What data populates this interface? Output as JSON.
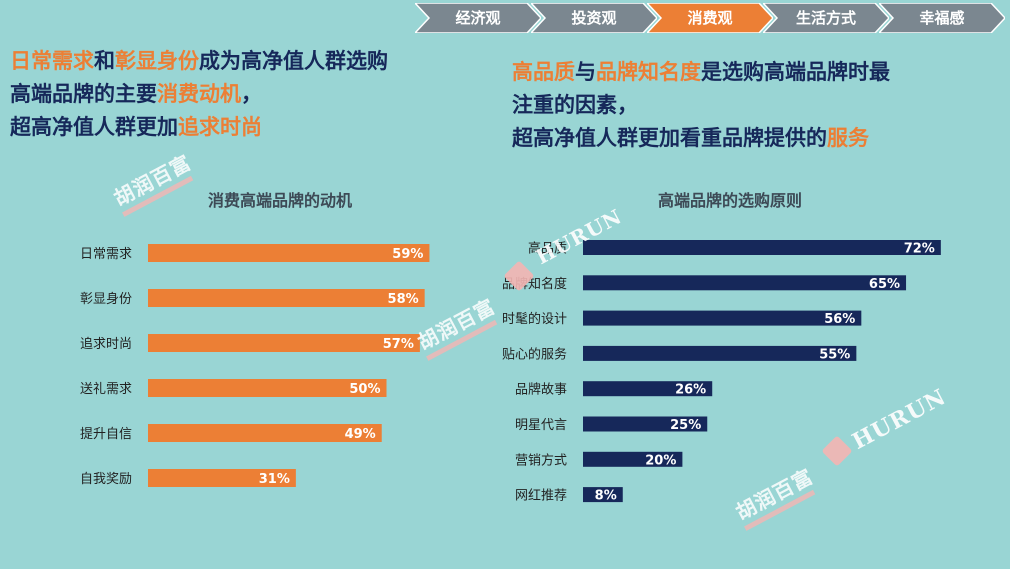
{
  "nav": {
    "tabs": [
      "经济观",
      "投资观",
      "消费观",
      "生活方式",
      "幸福感"
    ],
    "active_index": 2
  },
  "headline_left": {
    "line1": [
      {
        "t": "日常需求",
        "hl": true
      },
      {
        "t": "和",
        "hl": false
      },
      {
        "t": "彰显身份",
        "hl": true
      },
      {
        "t": "成为高净值人群选购",
        "hl": false
      }
    ],
    "line2": [
      {
        "t": "高端品牌的主要",
        "hl": false
      },
      {
        "t": "消费动机",
        "hl": true
      },
      {
        "t": "，",
        "hl": false
      }
    ],
    "line3": [
      {
        "t": "超高净值人群更加",
        "hl": false
      },
      {
        "t": "追求时尚",
        "hl": true
      }
    ]
  },
  "headline_right": {
    "line1": [
      {
        "t": "高品质",
        "hl": true
      },
      {
        "t": "与",
        "hl": false
      },
      {
        "t": "品牌知名度",
        "hl": true
      },
      {
        "t": "是选购高端品牌时最",
        "hl": false
      }
    ],
    "line2": [
      {
        "t": "注重的因素，",
        "hl": false
      }
    ],
    "line3": [
      {
        "t": "超高净值人群更加看重品牌提供的",
        "hl": false
      },
      {
        "t": "服务",
        "hl": true
      }
    ]
  },
  "watermark": {
    "cn": "胡润百富",
    "en": "HURUN"
  },
  "colors": {
    "accent": "#ec7f35",
    "navy": "#16285a",
    "background": "#99d5d4",
    "nav_bar": "#7b8790",
    "nav_active": "#ec7f35"
  },
  "chart_data": [
    {
      "type": "bar",
      "orientation": "horizontal",
      "title": "消费高端品牌的动机",
      "categories": [
        "日常需求",
        "彰显身份",
        "追求时尚",
        "送礼需求",
        "提升自信",
        "自我奖励"
      ],
      "values": [
        59,
        58,
        57,
        50,
        49,
        31
      ],
      "labels": [
        "59%",
        "58%",
        "57%",
        "50%",
        "49%",
        "31%"
      ],
      "unit": "%",
      "xlim": [
        0,
        100
      ],
      "color": "#ec7f35"
    },
    {
      "type": "bar",
      "orientation": "horizontal",
      "title": "高端品牌的选购原则",
      "categories": [
        "高品质",
        "品牌知名度",
        "时髦的设计",
        "贴心的服务",
        "品牌故事",
        "明星代言",
        "营销方式",
        "网红推荐"
      ],
      "values": [
        72,
        65,
        56,
        55,
        26,
        25,
        20,
        8
      ],
      "labels": [
        "72%",
        "65%",
        "56%",
        "55%",
        "26%",
        "25%",
        "20%",
        "8%"
      ],
      "unit": "%",
      "xlim": [
        0,
        100
      ],
      "color": "#16285a"
    }
  ]
}
